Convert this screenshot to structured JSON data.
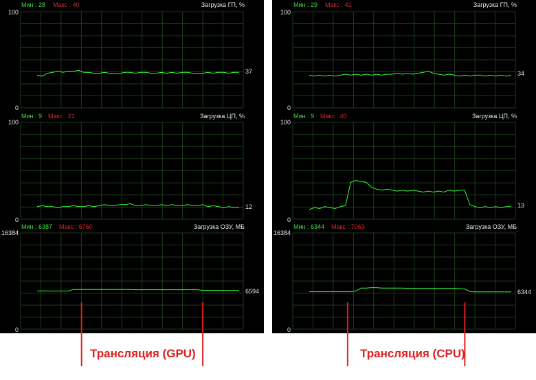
{
  "panels": [
    {
      "graphs": [
        {
          "min_label": "Мин : 28",
          "max_label": "Макс : 40",
          "title": "Загрузка ГП, %",
          "y_top": "100",
          "y_bottom": "0",
          "current": "37"
        },
        {
          "min_label": "Мин : 9",
          "max_label": "Макс : 21",
          "title": "Загрузка ЦП, %",
          "y_top": "100",
          "y_bottom": "0",
          "current": "12"
        },
        {
          "min_label": "Мин : 6387",
          "max_label": "Макс : 6760",
          "title": "Загрузка ОЗУ, МБ",
          "y_top": "16384",
          "y_bottom": "0",
          "current": "6594"
        }
      ],
      "annotation_label": "Трансляция (GPU)"
    },
    {
      "graphs": [
        {
          "min_label": "Мин : 29",
          "max_label": "Макс : 41",
          "title": "Загрузка ГП, %",
          "y_top": "100",
          "y_bottom": "0",
          "current": "34"
        },
        {
          "min_label": "Мин : 9",
          "max_label": "Макс : 40",
          "title": "Загрузка ЦП, %",
          "y_top": "100",
          "y_bottom": "0",
          "current": "13"
        },
        {
          "min_label": "Мин : 6344",
          "max_label": "Макс : 7063",
          "title": "Загрузка ОЗУ, МБ",
          "y_top": "16384",
          "y_bottom": "0",
          "current": "6344"
        }
      ],
      "annotation_label": "Трансляция (CPU)"
    }
  ],
  "colors": {
    "background": "#000000",
    "grid": "#1c3d1c",
    "line": "#33ff33",
    "min": "#3fe03f",
    "max": "#d22a2a",
    "annotation": "#e02020"
  },
  "chart_data": [
    {
      "type": "line",
      "panel": "left",
      "title": "Загрузка ГП, %",
      "ylim": [
        0,
        100
      ],
      "grid": true,
      "series": [
        {
          "values": [
            34,
            33,
            36,
            37,
            38,
            37,
            38,
            38,
            39,
            37,
            37,
            36,
            36,
            37,
            36,
            36,
            36,
            37,
            37,
            36,
            37,
            37,
            36,
            36,
            37,
            36,
            37,
            36,
            37,
            37,
            36,
            36,
            36,
            37,
            36,
            37,
            37,
            36,
            37,
            37
          ]
        }
      ],
      "markers": [
        {
          "position": 0.22
        },
        {
          "position": 0.82
        }
      ]
    },
    {
      "type": "line",
      "panel": "left",
      "title": "Загрузка ЦП, %",
      "ylim": [
        0,
        100
      ],
      "grid": true,
      "series": [
        {
          "values": [
            13,
            14,
            13,
            13,
            12,
            13,
            13,
            14,
            13,
            13,
            14,
            13,
            14,
            15,
            14,
            14,
            15,
            15,
            16,
            14,
            14,
            15,
            14,
            14,
            15,
            14,
            15,
            14,
            14,
            15,
            14,
            14,
            15,
            13,
            14,
            13,
            12,
            13,
            12,
            12
          ]
        }
      ],
      "markers": [
        {
          "position": 0.22
        },
        {
          "position": 0.82
        }
      ]
    },
    {
      "type": "line",
      "panel": "left",
      "title": "Загрузка ОЗУ, МБ",
      "ylim": [
        0,
        16384
      ],
      "grid": true,
      "series": [
        {
          "values": [
            6500,
            6510,
            6500,
            6500,
            6490,
            6500,
            6500,
            6760,
            6760,
            6760,
            6760,
            6760,
            6760,
            6760,
            6760,
            6760,
            6760,
            6760,
            6760,
            6720,
            6720,
            6720,
            6720,
            6720,
            6720,
            6720,
            6720,
            6720,
            6720,
            6720,
            6720,
            6720,
            6600,
            6600,
            6600,
            6600,
            6600,
            6600,
            6594,
            6594
          ]
        }
      ],
      "markers": [
        {
          "position": 0.22
        },
        {
          "position": 0.82
        }
      ]
    },
    {
      "type": "line",
      "panel": "right",
      "title": "Загрузка ГП, %",
      "ylim": [
        0,
        100
      ],
      "grid": true,
      "series": [
        {
          "values": [
            34,
            33,
            34,
            33,
            34,
            33,
            34,
            35,
            34,
            35,
            34,
            35,
            34,
            35,
            34,
            35,
            35,
            36,
            35,
            36,
            35,
            36,
            37,
            38,
            36,
            35,
            34,
            35,
            34,
            33,
            34,
            33,
            34,
            34,
            33,
            34,
            33,
            34,
            33,
            34
          ]
        }
      ],
      "markers": [
        {
          "position": 0.19
        },
        {
          "position": 0.77
        }
      ]
    },
    {
      "type": "line",
      "panel": "right",
      "title": "Загрузка ЦП, %",
      "ylim": [
        0,
        100
      ],
      "grid": true,
      "series": [
        {
          "values": [
            10,
            12,
            11,
            13,
            12,
            11,
            13,
            14,
            38,
            40,
            39,
            38,
            33,
            31,
            30,
            31,
            30,
            29,
            30,
            29,
            30,
            29,
            28,
            29,
            28,
            29,
            28,
            30,
            29,
            30,
            30,
            15,
            13,
            12,
            13,
            12,
            13,
            12,
            13,
            13
          ]
        }
      ],
      "markers": [
        {
          "position": 0.19
        },
        {
          "position": 0.77
        }
      ]
    },
    {
      "type": "line",
      "panel": "right",
      "title": "Загрузка ОЗУ, МБ",
      "ylim": [
        0,
        16384
      ],
      "grid": true,
      "series": [
        {
          "values": [
            6380,
            6380,
            6380,
            6380,
            6380,
            6380,
            6380,
            6380,
            6380,
            6500,
            7000,
            7000,
            7063,
            7063,
            7000,
            7000,
            7000,
            7000,
            7000,
            6950,
            6950,
            6950,
            6950,
            6950,
            6950,
            6950,
            6950,
            6950,
            6950,
            6900,
            6850,
            6400,
            6344,
            6344,
            6344,
            6344,
            6344,
            6344,
            6344,
            6344
          ]
        }
      ],
      "markers": [
        {
          "position": 0.19
        },
        {
          "position": 0.77
        }
      ]
    }
  ]
}
